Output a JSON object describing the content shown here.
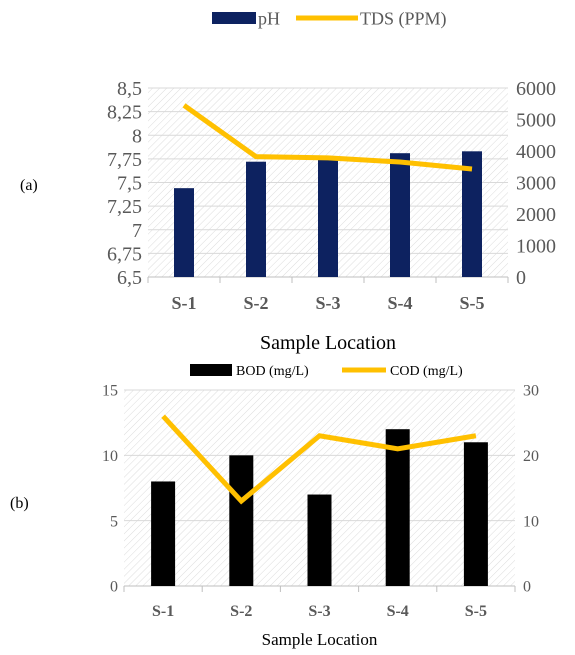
{
  "chart_data": [
    {
      "type": "bar",
      "panel_label": "(a)",
      "categories": [
        "S-1",
        "S-2",
        "S-3",
        "S-4",
        "S-5"
      ],
      "xlabel": "Sample Location",
      "y_ticks": [
        "6,5",
        "6,75",
        "7",
        "7,25",
        "7,5",
        "7,75",
        "8",
        "8,25",
        "8,5"
      ],
      "ylim": [
        6.5,
        8.5
      ],
      "y2_ticks": [
        "0",
        "1000",
        "2000",
        "3000",
        "4000",
        "5000",
        "6000"
      ],
      "y2lim": [
        0,
        6000
      ],
      "grid": true,
      "legend_position": "top",
      "series": [
        {
          "name": "pH",
          "type": "bar",
          "axis": "left",
          "color": "#0d2260",
          "values": [
            7.44,
            7.72,
            7.74,
            7.81,
            7.83
          ]
        },
        {
          "name": "TDS (PPM)",
          "type": "line",
          "axis": "right",
          "color": "#ffc000",
          "values": [
            5450,
            3820,
            3780,
            3650,
            3430
          ]
        }
      ]
    },
    {
      "type": "bar",
      "panel_label": "(b)",
      "categories": [
        "S-1",
        "S-2",
        "S-3",
        "S-4",
        "S-5"
      ],
      "xlabel": "Sample Location",
      "y_ticks": [
        "0",
        "5",
        "10",
        "15"
      ],
      "ylim": [
        0,
        15
      ],
      "y2_ticks": [
        "0",
        "10",
        "20",
        "30"
      ],
      "y2lim": [
        0,
        30
      ],
      "grid": true,
      "legend_position": "top",
      "series": [
        {
          "name": "BOD (mg/L)",
          "type": "bar",
          "axis": "left",
          "color": "#000000",
          "values": [
            8,
            10,
            7,
            12,
            11
          ]
        },
        {
          "name": "COD (mg/L)",
          "type": "line",
          "axis": "right",
          "color": "#ffc000",
          "values": [
            26,
            13,
            23,
            21,
            23
          ]
        }
      ]
    }
  ]
}
